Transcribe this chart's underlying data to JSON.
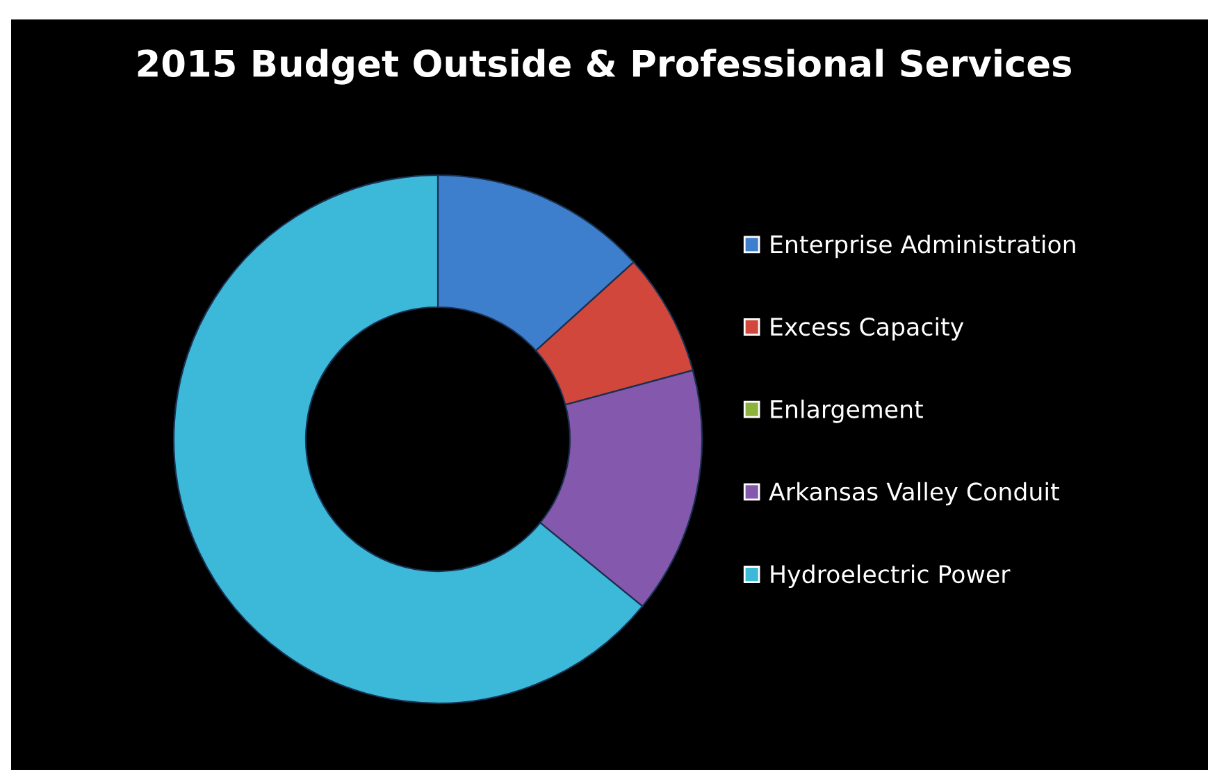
{
  "chart_data": {
    "type": "donut",
    "title": "2015 Budget Outside & Professional Services",
    "categories": [
      "Enterprise Administration",
      "Excess Capacity",
      "Enlargement",
      "Arkansas Valley Conduit",
      "Hydroelectric Power"
    ],
    "values": [
      13.3,
      7.5,
      0,
      15.1,
      64.1
    ],
    "colors": [
      "#3d7fcc",
      "#d2473c",
      "#8cb43c",
      "#8458ad",
      "#3cb8d9"
    ],
    "legend": "right"
  }
}
